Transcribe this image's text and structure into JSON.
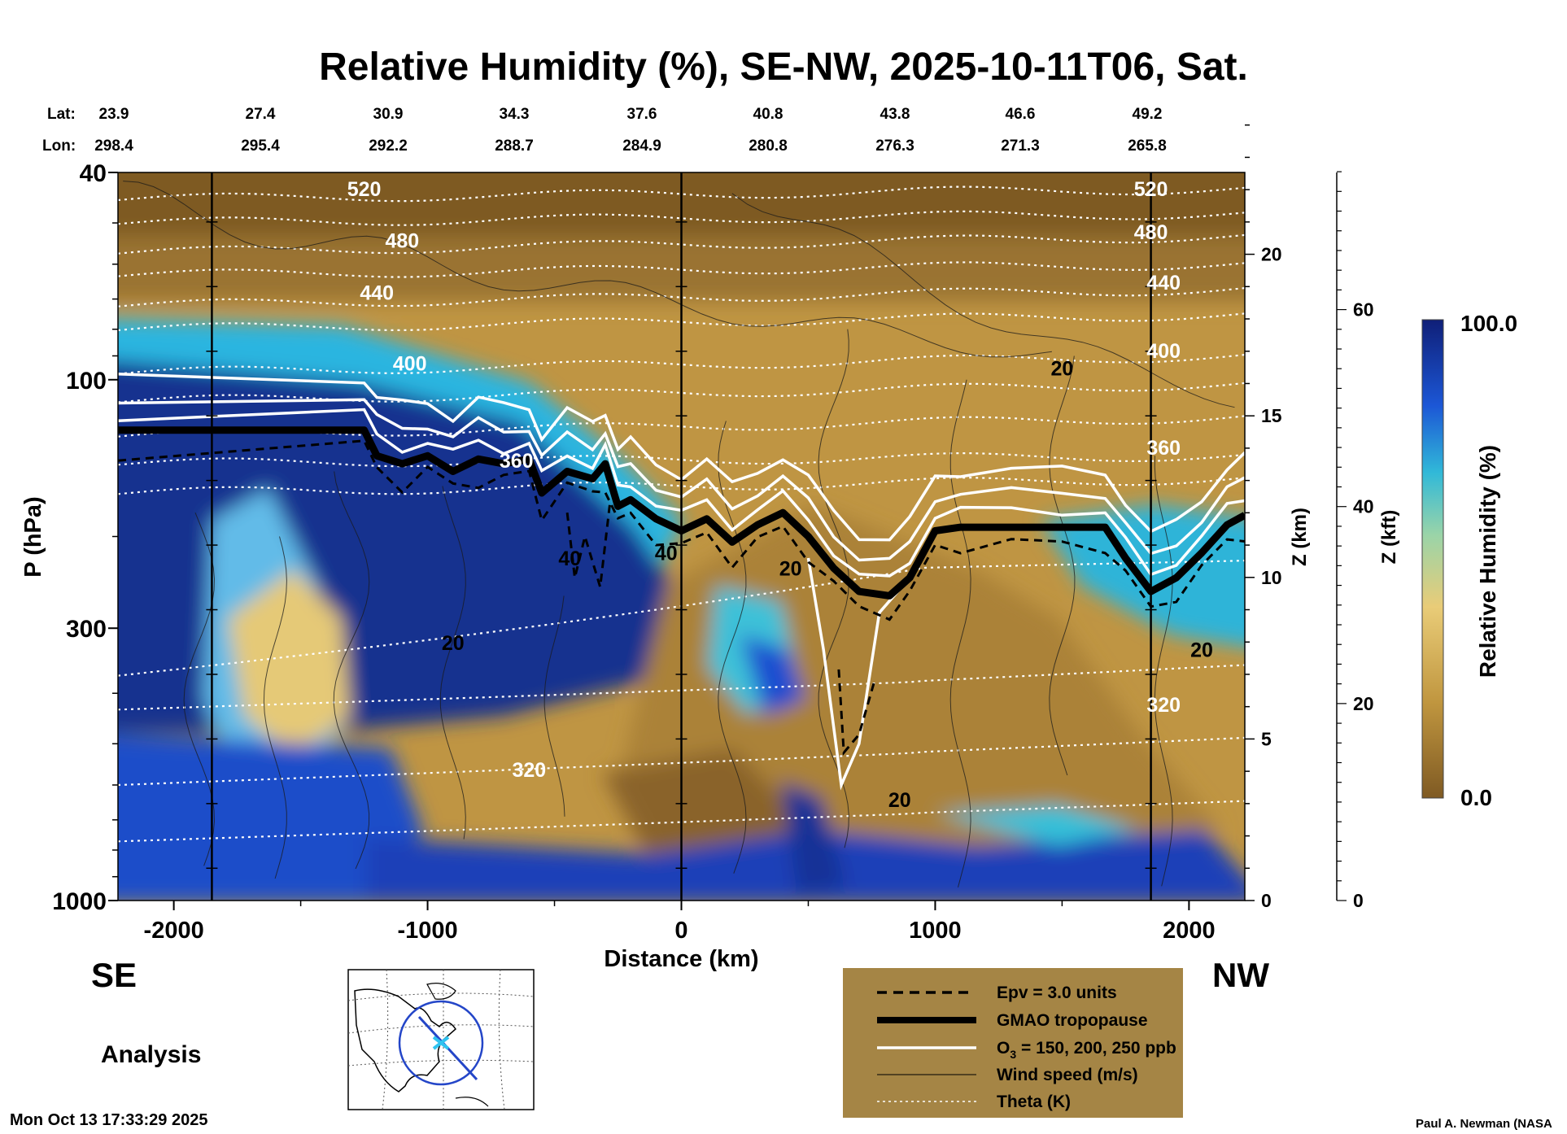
{
  "title": "Relative Humidity (%), SE-NW, 2025-10-11T06, Sat.",
  "lat_label": "Lat:",
  "lon_label": "Lon:",
  "lats": [
    "23.9",
    "27.4",
    "30.9",
    "34.3",
    "37.6",
    "40.8",
    "43.8",
    "46.6",
    "49.2"
  ],
  "lons": [
    "298.4",
    "295.4",
    "292.2",
    "288.7",
    "284.9",
    "280.8",
    "276.3",
    "271.3",
    "265.8"
  ],
  "left_end": "SE",
  "right_end": "NW",
  "analysis_label": "Analysis",
  "timestamp": "Mon Oct 13 17:33:29 2025",
  "credit": "Paul A. Newman (NASA",
  "colorbar": {
    "label": "Relative Humidity (%)",
    "max_label": "100.0",
    "min_label": "0.0"
  },
  "legend": {
    "epv": "Epv = 3.0 units",
    "tropopause": "GMAO tropopause",
    "o3_prefix": "O",
    "o3_sub": "3",
    "o3_suffix": " = 150, 200, 250 ppb",
    "wind": "Wind speed (m/s)",
    "theta": "Theta (K)"
  },
  "colors": {
    "legend_bg": "#a58545",
    "dry": "#7f5a23",
    "wet": "#0f1f78"
  },
  "chart_data": {
    "type": "heatmap",
    "title": "Relative Humidity (%), SE-NW, 2025-10-11T06, Sat.",
    "xlabel": "Distance (km)",
    "ylabel": "P (hPa)",
    "ylabel_right_km": "Z (km)",
    "ylabel_right_kft": "Z (kft)",
    "xlim": [
      -2220,
      2220
    ],
    "ylim": [
      1000,
      40
    ],
    "y_scale": "log",
    "x_ticks": [
      -2000,
      -1000,
      0,
      1000,
      2000
    ],
    "x_tick_labels": [
      "-2000",
      "-1000",
      "0",
      "1000",
      "2000"
    ],
    "y_ticks": [
      40,
      100,
      300,
      1000
    ],
    "y_tick_labels": [
      "40",
      "100",
      "300",
      "1000"
    ],
    "z_km_ticks": [
      0,
      5,
      10,
      15,
      20
    ],
    "z_km_labels": [
      "0",
      "5",
      "10",
      "15",
      "20"
    ],
    "z_kft_ticks": [
      0,
      20,
      40,
      60
    ],
    "z_kft_labels": [
      "0",
      "20",
      "40",
      "60"
    ],
    "colorbar_range": [
      0.0,
      100.0
    ],
    "theta_levels": [
      320,
      360,
      400,
      440,
      480,
      520
    ],
    "theta_labels": [
      "320",
      "360",
      "400",
      "440",
      "480",
      "520"
    ],
    "wind_labels": [
      "20",
      "40"
    ],
    "markers_km": [
      -1850,
      0,
      1850
    ],
    "tropopause": {
      "x": [
        -2220,
        -1250,
        -1200,
        -1100,
        -1000,
        -900,
        -800,
        -700,
        -600,
        -550,
        -450,
        -350,
        -300,
        -250,
        -200,
        -100,
        0,
        100,
        200,
        300,
        400,
        500,
        600,
        700,
        820,
        900,
        1000,
        1100,
        1300,
        1500,
        1670,
        1750,
        1850,
        1950,
        2050,
        2150,
        2220
      ],
      "p": [
        125,
        125,
        140,
        145,
        140,
        150,
        142,
        145,
        142,
        165,
        150,
        155,
        145,
        175,
        170,
        185,
        195,
        185,
        205,
        190,
        180,
        200,
        230,
        255,
        260,
        240,
        195,
        192,
        192,
        192,
        192,
        220,
        255,
        240,
        215,
        190,
        182
      ]
    },
    "regions": [
      {
        "name": "stratosphere-dry",
        "rh": 5
      },
      {
        "name": "upper-troposphere-se-moist",
        "rh": 95
      },
      {
        "name": "lower-troposphere-nw-dry",
        "rh": 15
      },
      {
        "name": "boundary-layer-moist",
        "rh": 90
      }
    ]
  }
}
